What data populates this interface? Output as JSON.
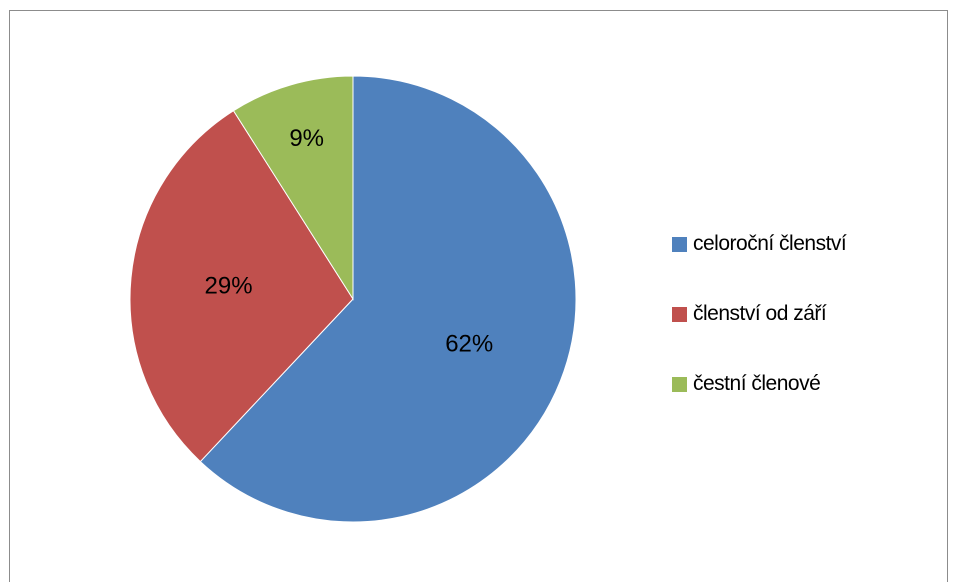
{
  "chart_data": {
    "type": "pie",
    "title": "",
    "categories": [
      "celoroční členství",
      "členství od září",
      "čestní členové"
    ],
    "values": [
      62,
      29,
      9
    ],
    "value_labels": [
      "62%",
      "29%",
      "9%"
    ],
    "colors": [
      "#4f81bd",
      "#c0504d",
      "#9bbb59"
    ],
    "start_angle": "12 o'clock",
    "direction": "clockwise",
    "legend": {
      "position": "right",
      "items": [
        {
          "label": "celoroční členství",
          "color": "#4f81bd"
        },
        {
          "label": "členství od září",
          "color": "#c0504d"
        },
        {
          "label": "čestní členové",
          "color": "#9bbb59"
        }
      ]
    }
  }
}
